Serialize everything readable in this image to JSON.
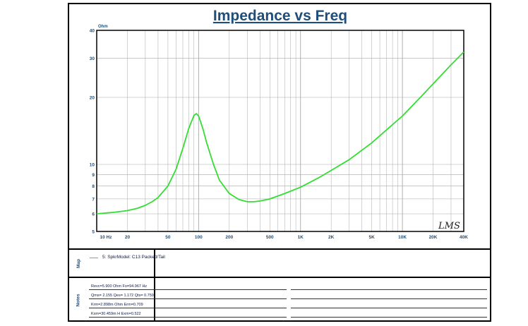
{
  "title": "Impedance vs Freq",
  "watermark": "LMS",
  "chart_data": {
    "type": "line",
    "title": "Impedance vs Freq",
    "ylabel": "Ohm",
    "xlabel": "",
    "x_scale": "log",
    "y_scale": "log",
    "xlim": [
      10,
      40000
    ],
    "ylim": [
      5,
      40
    ],
    "x_ticks": [
      {
        "value": 10,
        "label": "10  Hz"
      },
      {
        "value": 20,
        "label": "20"
      },
      {
        "value": 50,
        "label": "50"
      },
      {
        "value": 100,
        "label": "100"
      },
      {
        "value": 200,
        "label": "200"
      },
      {
        "value": 500,
        "label": "500"
      },
      {
        "value": 1000,
        "label": "1K"
      },
      {
        "value": 2000,
        "label": "2K"
      },
      {
        "value": 5000,
        "label": "5K"
      },
      {
        "value": 10000,
        "label": "10K"
      },
      {
        "value": 20000,
        "label": "20K"
      },
      {
        "value": 40000,
        "label": "40K"
      }
    ],
    "y_ticks": [
      {
        "value": 5,
        "label": "5"
      },
      {
        "value": 6,
        "label": "6"
      },
      {
        "value": 7,
        "label": "7"
      },
      {
        "value": 8,
        "label": "8"
      },
      {
        "value": 9,
        "label": "9"
      },
      {
        "value": 10,
        "label": "10"
      },
      {
        "value": 20,
        "label": "20"
      },
      {
        "value": 30,
        "label": "30"
      },
      {
        "value": 40,
        "label": "40"
      }
    ],
    "grid": true,
    "series": [
      {
        "name": "5: SpkrModel: C13 Packed/Tail",
        "color": "#33dd33",
        "x": [
          10,
          15,
          20,
          25,
          30,
          35,
          40,
          50,
          60,
          70,
          80,
          90,
          95,
          100,
          110,
          120,
          140,
          160,
          200,
          250,
          300,
          350,
          400,
          500,
          700,
          1000,
          1500,
          2000,
          3000,
          5000,
          7000,
          10000,
          15000,
          20000,
          30000,
          40000
        ],
        "y": [
          6.0,
          6.1,
          6.2,
          6.35,
          6.55,
          6.8,
          7.1,
          8.0,
          9.5,
          11.8,
          14.5,
          16.6,
          16.9,
          16.5,
          14.5,
          12.5,
          10.0,
          8.5,
          7.4,
          6.95,
          6.8,
          6.8,
          6.85,
          7.0,
          7.4,
          7.9,
          8.7,
          9.4,
          10.5,
          12.5,
          14.3,
          16.5,
          20.0,
          23.0,
          28.0,
          32.0
        ]
      }
    ]
  },
  "map_panel": {
    "label": "Map",
    "legend_entry": "5: SpkrModel: C13 Packed/Tail"
  },
  "notes_panel": {
    "label": "Notes",
    "lines": [
      "Revc=5.900 Ohm  Fo=94.967 Hz",
      "Qms= 2.155  Qes= 1.172  Qts= 0.759",
      "Krm=2.898m Ohm  Erm=0.709",
      "Kxm=30.459m H  Exm=0.522"
    ]
  }
}
